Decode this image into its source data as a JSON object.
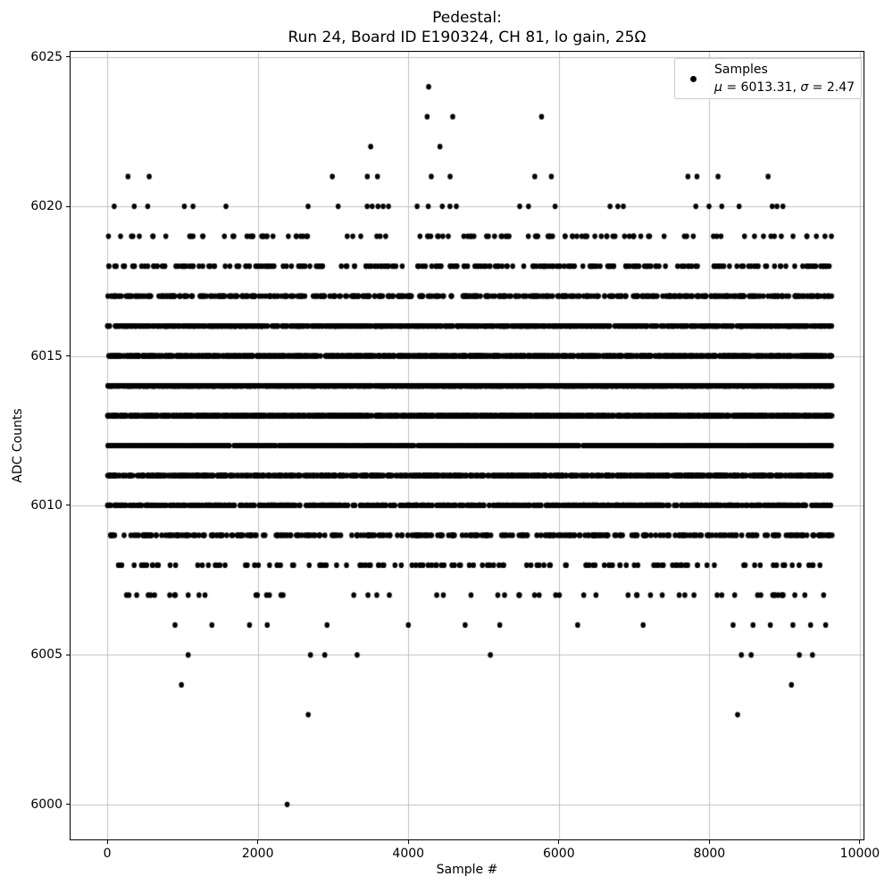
{
  "title": {
    "line1": "Pedestal:",
    "line2": "Run 24, Board ID E190324, CH 81, lo gain, 25Ω"
  },
  "axes": {
    "xlabel": "Sample #",
    "ylabel": "ADC Counts",
    "xtick_labels": [
      "0",
      "2000",
      "4000",
      "6000",
      "8000",
      "10000"
    ],
    "ytick_labels": [
      "6000",
      "6005",
      "6010",
      "6015",
      "6020",
      "6025"
    ]
  },
  "legend": {
    "label": "Samples",
    "mu_symbol": "μ",
    "mu_value_text": " = 6013.31, ",
    "sigma_symbol": "σ",
    "sigma_value_text": " = 2.47"
  },
  "chart_data": {
    "type": "scatter",
    "title": "Pedestal: Run 24, Board ID E190324, CH 81, lo gain, 25Ω",
    "xlabel": "Sample #",
    "ylabel": "ADC Counts",
    "legend_label": "Samples",
    "legend_stats": "μ = 6013.31, σ = 2.47",
    "legend_position": "upper right",
    "grid": true,
    "grid_color": "#c0c0c0",
    "marker_color": "#000000",
    "mu": 6013.31,
    "sigma": 2.47,
    "xlim": [
      -500,
      10060
    ],
    "ylim": [
      5998.8,
      6025.2
    ],
    "xticks": [
      0,
      2000,
      4000,
      6000,
      8000,
      10000
    ],
    "yticks": [
      6000,
      6005,
      6010,
      6015,
      6020,
      6025
    ],
    "data_x_min": 0,
    "data_x_max": 9630,
    "rows": [
      {
        "adc": 6024,
        "points": [
          4270
        ]
      },
      {
        "adc": 6023,
        "points": [
          4250,
          4590,
          5770
        ]
      },
      {
        "adc": 6022,
        "points": [
          3500,
          4420
        ]
      },
      {
        "adc": 6021,
        "points": [
          275,
          557,
          2990,
          3455,
          3590,
          4305,
          4555,
          5680,
          5900,
          7715,
          7835,
          8115,
          8780
        ]
      },
      {
        "adc": 6020,
        "points": [
          92,
          358,
          537,
          1024,
          1139,
          1577,
          2668,
          3068,
          3453,
          3520,
          3597,
          3665,
          3737,
          4117,
          4265,
          4451,
          4553,
          4638,
          5480,
          5597,
          5950,
          6680,
          6784,
          6857,
          7820,
          7995,
          8165,
          8395,
          8835,
          8898,
          8977
        ]
      },
      {
        "adc": 6019,
        "count": 110
      },
      {
        "adc": 6018,
        "count": 250
      },
      {
        "adc": 6017,
        "count": 480
      },
      {
        "adc": 6016,
        "count": 780
      },
      {
        "adc": 6015,
        "count": 1150
      },
      {
        "adc": 6014,
        "count": 1500
      },
      {
        "adc": 6013,
        "count": 1600
      },
      {
        "adc": 6012,
        "count": 1330
      },
      {
        "adc": 6011,
        "count": 1000
      },
      {
        "adc": 6010,
        "count": 620
      },
      {
        "adc": 6009,
        "count": 335
      },
      {
        "adc": 6008,
        "count": 135
      },
      {
        "adc": 6007,
        "count": 58
      },
      {
        "adc": 6006,
        "points": [
          900,
          1390,
          1890,
          2125,
          2920,
          4000,
          4755,
          5215,
          6250,
          7120,
          8315,
          8580,
          8810,
          9110,
          9345,
          9545
        ]
      },
      {
        "adc": 6005,
        "points": [
          1075,
          2700,
          2890,
          3320,
          5090,
          8425,
          8555,
          9195,
          9370
        ]
      },
      {
        "adc": 6004,
        "points": [
          985,
          9090
        ]
      },
      {
        "adc": 6003,
        "points": [
          2670,
          8375
        ]
      },
      {
        "adc": 6000,
        "points": [
          2390
        ]
      }
    ]
  }
}
